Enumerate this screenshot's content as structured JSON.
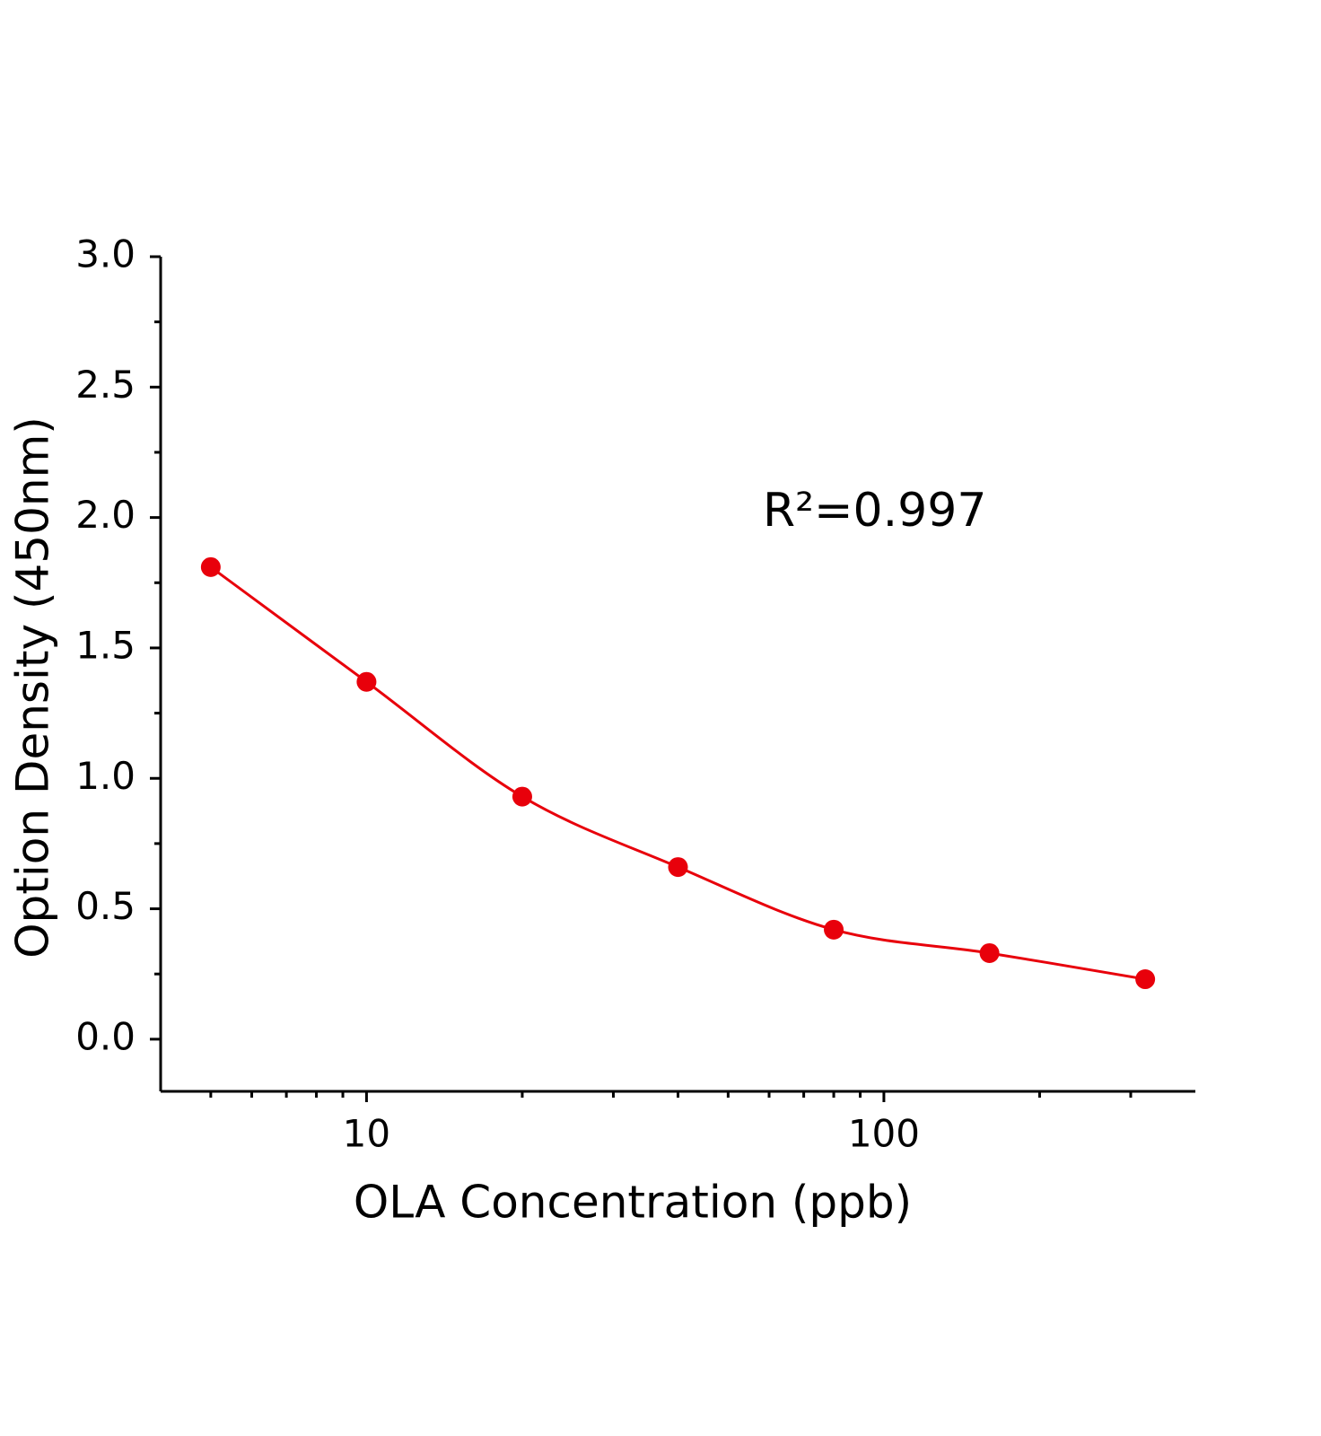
{
  "chart_data": {
    "type": "scatter",
    "x_label": "OLA Concentration (ppb)",
    "y_label": "Option Density (450nm)",
    "annotation": "R²=0.997",
    "x": [
      5,
      10,
      20,
      40,
      80,
      160,
      320
    ],
    "series": [
      {
        "values": [
          1.81,
          1.37,
          0.93,
          0.66,
          0.42,
          0.33,
          0.23
        ],
        "color": "#e8000b"
      }
    ],
    "x_scale": "log",
    "xlim": [
      4,
      400
    ],
    "xticks": [
      10,
      100
    ],
    "ylim": [
      -0.2,
      3.0
    ],
    "yticks": [
      {
        "value": 0,
        "label": "0.0"
      },
      {
        "value": 0.5,
        "label": "0.5"
      },
      {
        "value": 1,
        "label": "1.0"
      },
      {
        "value": 1.5,
        "label": "1.5"
      },
      {
        "value": 2,
        "label": "2.0"
      },
      {
        "value": 2.5,
        "label": "2.5"
      },
      {
        "value": 3,
        "label": "3.0"
      }
    ],
    "fit_line": true
  }
}
